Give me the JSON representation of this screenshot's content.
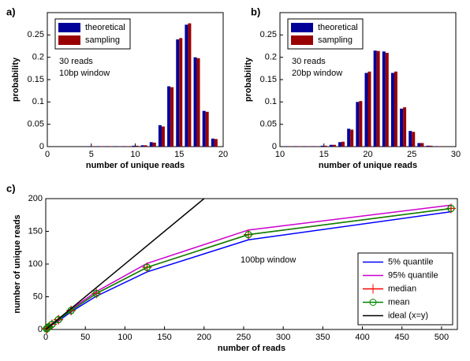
{
  "chart_data": [
    {
      "type": "bar",
      "panel_label": "a)",
      "xlabel": "number of unique reads",
      "ylabel": "probability",
      "annotations": [
        "30 reads",
        "10bp window"
      ],
      "legend": "upper left",
      "xlim": [
        0,
        20
      ],
      "ylim": [
        0,
        0.3
      ],
      "xticks": [
        0,
        5,
        10,
        15,
        20
      ],
      "yticks": [
        0,
        0.05,
        0.1,
        0.15,
        0.2,
        0.25
      ],
      "x": [
        5,
        6,
        7,
        8,
        9,
        10,
        11,
        12,
        13,
        14,
        15,
        16,
        17,
        18,
        19
      ],
      "series": [
        {
          "name": "theoretical",
          "color": "#000099",
          "values": [
            0.001,
            0.001,
            0.001,
            0.001,
            0.001,
            0.002,
            0.003,
            0.01,
            0.048,
            0.135,
            0.24,
            0.273,
            0.2,
            0.08,
            0.018
          ]
        },
        {
          "name": "sampling",
          "color": "#990000",
          "values": [
            0.001,
            0.001,
            0.001,
            0.001,
            0.001,
            0.002,
            0.003,
            0.009,
            0.045,
            0.133,
            0.243,
            0.276,
            0.198,
            0.078,
            0.017
          ]
        }
      ]
    },
    {
      "type": "bar",
      "panel_label": "b)",
      "xlabel": "number of unique reads",
      "ylabel": "probability",
      "annotations": [
        "30 reads",
        "20bp window"
      ],
      "legend": "upper left",
      "xlim": [
        10,
        30
      ],
      "ylim": [
        0,
        0.3
      ],
      "xticks": [
        10,
        15,
        20,
        25,
        30
      ],
      "yticks": [
        0,
        0.05,
        0.1,
        0.15,
        0.2,
        0.25
      ],
      "x": [
        11,
        12,
        13,
        14,
        15,
        16,
        17,
        18,
        19,
        20,
        21,
        22,
        23,
        24,
        25,
        26,
        27,
        28
      ],
      "series": [
        {
          "name": "theoretical",
          "color": "#000099",
          "values": [
            0.001,
            0.001,
            0.001,
            0.001,
            0.002,
            0.004,
            0.01,
            0.04,
            0.1,
            0.165,
            0.215,
            0.213,
            0.165,
            0.085,
            0.035,
            0.008,
            0.002,
            0.001
          ]
        },
        {
          "name": "sampling",
          "color": "#990000",
          "values": [
            0.001,
            0.001,
            0.001,
            0.001,
            0.002,
            0.004,
            0.011,
            0.038,
            0.102,
            0.168,
            0.214,
            0.21,
            0.168,
            0.088,
            0.033,
            0.008,
            0.002,
            0.001
          ]
        }
      ]
    },
    {
      "type": "line",
      "panel_label": "c)",
      "xlabel": "number of reads",
      "ylabel": "number of unique reads",
      "annotations": [
        "100bp window"
      ],
      "legend": "lower right",
      "xlim": [
        0,
        520
      ],
      "ylim": [
        0,
        200
      ],
      "xticks": [
        0,
        50,
        100,
        150,
        200,
        250,
        300,
        350,
        400,
        450,
        500
      ],
      "yticks": [
        0,
        50,
        100,
        150,
        200
      ],
      "series": [
        {
          "name": "5% quantile",
          "color": "#0000ff",
          "marker": "",
          "x": [
            1,
            2,
            4,
            8,
            16,
            32,
            64,
            128,
            256,
            512
          ],
          "values": [
            1,
            2,
            3.5,
            7,
            13,
            27,
            51,
            88,
            137,
            180
          ]
        },
        {
          "name": "95% quantile",
          "color": "#cc00cc",
          "marker": "",
          "x": [
            1,
            2,
            4,
            8,
            16,
            32,
            64,
            128,
            256,
            512
          ],
          "values": [
            1,
            2,
            4,
            8,
            16,
            31,
            58,
            101,
            152,
            190
          ]
        },
        {
          "name": "median",
          "color": "#ff0000",
          "marker": "+",
          "x": [
            1,
            2,
            4,
            8,
            16,
            32,
            64,
            128,
            256,
            512
          ],
          "values": [
            1,
            2,
            4,
            7.9,
            15,
            29,
            55,
            95,
            145,
            185
          ]
        },
        {
          "name": "mean",
          "color": "#008800",
          "marker": "o",
          "x": [
            1,
            2,
            4,
            8,
            16,
            32,
            64,
            128,
            256,
            512
          ],
          "values": [
            1,
            2,
            4,
            7.9,
            15,
            29,
            55,
            95,
            145,
            185
          ]
        },
        {
          "name": "ideal (x=y)",
          "color": "#000000",
          "marker": "",
          "x": [
            0,
            200
          ],
          "values": [
            0,
            200
          ]
        }
      ]
    }
  ]
}
